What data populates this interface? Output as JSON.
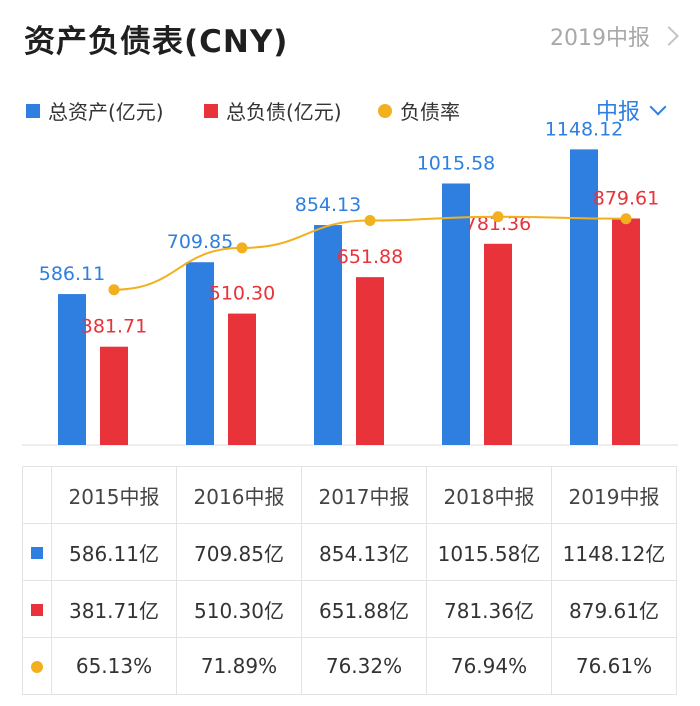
{
  "header": {
    "title": "资产负债表(CNY)",
    "period_link": "2019中报"
  },
  "legend": {
    "assets": "总资产(亿元)",
    "liabilities": "总负债(亿元)",
    "ratio": "负债率"
  },
  "period_select": "中报",
  "colors": {
    "assets": "#2f7fe0",
    "liabilities": "#e8333a",
    "ratio": "#f2b01e"
  },
  "chart_data": {
    "type": "bar",
    "title": "资产负债表(CNY)",
    "categories": [
      "2015中报",
      "2016中报",
      "2017中报",
      "2018中报",
      "2019中报"
    ],
    "series": [
      {
        "name": "总资产(亿元)",
        "values": [
          586.11,
          709.85,
          854.13,
          1015.58,
          1148.12
        ]
      },
      {
        "name": "总负债(亿元)",
        "values": [
          381.71,
          510.3,
          651.88,
          781.36,
          879.61
        ]
      },
      {
        "name": "负债率",
        "type": "line",
        "values": [
          65.13,
          71.89,
          76.32,
          76.94,
          76.61
        ]
      }
    ],
    "bar_labels": {
      "assets": [
        "586.11",
        "709.85",
        "854.13",
        "1015.58",
        "1148.12"
      ],
      "liabilities": [
        "381.71",
        "510.30",
        "651.88",
        "781.36",
        "879.61"
      ]
    },
    "ylim": [
      0,
      1200
    ],
    "ratio_ylim": [
      40,
      90
    ],
    "legend_position": "top-left"
  },
  "table": {
    "headers": [
      "2015中报",
      "2016中报",
      "2017中报",
      "2018中报",
      "2019中报"
    ],
    "rows": [
      {
        "key": "assets",
        "cells": [
          "586.11亿",
          "709.85亿",
          "854.13亿",
          "1015.58亿",
          "1148.12亿"
        ]
      },
      {
        "key": "liabilities",
        "cells": [
          "381.71亿",
          "510.30亿",
          "651.88亿",
          "781.36亿",
          "879.61亿"
        ]
      },
      {
        "key": "ratio",
        "cells": [
          "65.13%",
          "71.89%",
          "76.32%",
          "76.94%",
          "76.61%"
        ]
      }
    ]
  },
  "icons": {
    "period_link": "chevron-right-icon",
    "period_select": "chevron-down-icon"
  }
}
